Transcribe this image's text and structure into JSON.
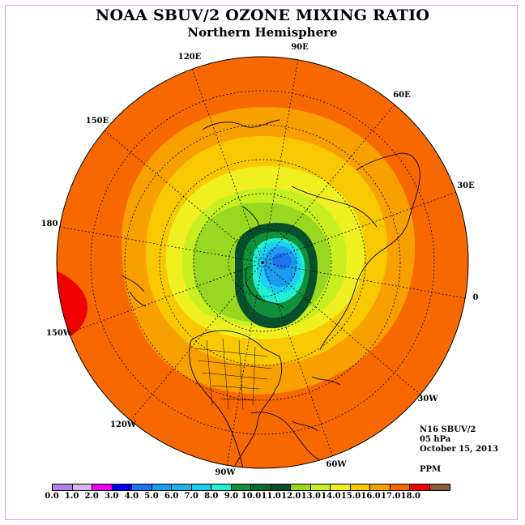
{
  "title": "NOAA SBUV/2 OZONE MIXING RATIO",
  "subtitle": "Northern Hemisphere",
  "info": {
    "instrument": "N16 SBUV/2",
    "level": "05 hPa",
    "date": "October 15, 2013",
    "units": "PPM"
  },
  "longitude_labels": [
    "90E",
    "60E",
    "30E",
    "0",
    "30W",
    "60W",
    "90W",
    "120W",
    "150W",
    "180",
    "150E",
    "120E"
  ],
  "colorbar": {
    "labels": [
      "0.0",
      "1.0",
      "2.0",
      "3.0",
      "4.0",
      "5.0",
      "6.0",
      "7.0",
      "8.0",
      "9.0",
      "10.0",
      "11.0",
      "12.0",
      "13.0",
      "14.0",
      "15.0",
      "16.0",
      "17.0",
      "18.0"
    ],
    "colors": [
      "#b380ee",
      "#d9b3f2",
      "#f000f0",
      "#0000ee",
      "#1c74ee",
      "#1c9cee",
      "#1cb4ee",
      "#1ccef0",
      "#20f0d0",
      "#10903a",
      "#0a6a2a",
      "#08502a",
      "#98d820",
      "#c8f020",
      "#f0f020",
      "#f8c800",
      "#f8a000",
      "#f86800",
      "#f00000",
      "#8a5a3a"
    ]
  }
}
